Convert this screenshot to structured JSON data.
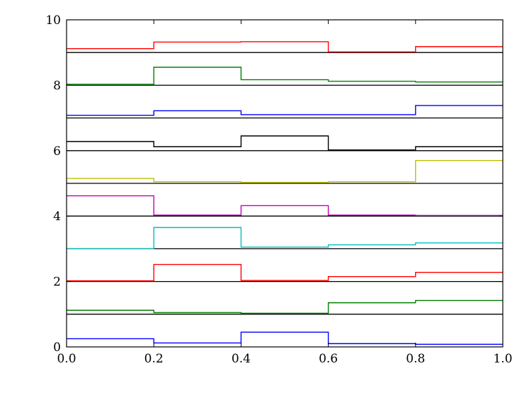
{
  "chart_data": {
    "type": "line",
    "subtype": "stacked-step",
    "title": "",
    "xlabel": "",
    "ylabel": "",
    "xlim": [
      0.0,
      1.0
    ],
    "ylim": [
      0,
      10
    ],
    "grid": false,
    "legend": "none",
    "x_ticks": [
      0.0,
      0.2,
      0.4,
      0.6,
      0.8,
      1.0
    ],
    "x_tick_labels": [
      "0.0",
      "0.2",
      "0.4",
      "0.6",
      "0.8",
      "1.0"
    ],
    "y_ticks": [
      0,
      2,
      4,
      6,
      8,
      10
    ],
    "y_tick_labels": [
      "0",
      "2",
      "4",
      "6",
      "8",
      "10"
    ],
    "x_edges": [
      0.0,
      0.2,
      0.4,
      0.6,
      0.8,
      1.0
    ],
    "baselines": [
      1,
      2,
      3,
      4,
      5,
      6,
      7,
      8,
      9
    ],
    "series": [
      {
        "color": "#0000ff",
        "values": [
          0.25,
          0.12,
          0.45,
          0.1,
          0.08
        ]
      },
      {
        "color": "#008000",
        "values": [
          1.12,
          1.05,
          1.03,
          1.35,
          1.42
        ]
      },
      {
        "color": "#ff0000",
        "values": [
          2.02,
          2.52,
          2.03,
          2.15,
          2.28
        ]
      },
      {
        "color": "#00bfbf",
        "values": [
          3.0,
          3.65,
          3.05,
          3.12,
          3.18
        ]
      },
      {
        "color": "#bf00bf",
        "values": [
          4.62,
          4.03,
          4.32,
          4.03,
          4.02
        ]
      },
      {
        "color": "#bfbf00",
        "values": [
          5.15,
          5.05,
          5.03,
          5.05,
          5.7
        ]
      },
      {
        "color": "#000000",
        "values": [
          6.28,
          6.12,
          6.45,
          6.02,
          6.12
        ]
      },
      {
        "color": "#0000ff",
        "values": [
          7.08,
          7.22,
          7.1,
          7.1,
          7.38
        ]
      },
      {
        "color": "#008000",
        "values": [
          8.03,
          8.55,
          8.17,
          8.12,
          8.1
        ]
      },
      {
        "color": "#ff0000",
        "values": [
          9.12,
          9.32,
          9.33,
          9.02,
          9.18
        ]
      }
    ]
  }
}
